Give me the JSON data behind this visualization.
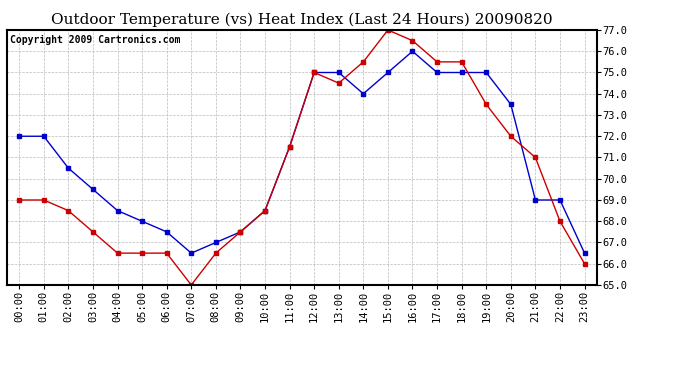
{
  "title": "Outdoor Temperature (vs) Heat Index (Last 24 Hours) 20090820",
  "copyright": "Copyright 2009 Cartronics.com",
  "hours": [
    "00:00",
    "01:00",
    "02:00",
    "03:00",
    "04:00",
    "05:00",
    "06:00",
    "07:00",
    "08:00",
    "09:00",
    "10:00",
    "11:00",
    "12:00",
    "13:00",
    "14:00",
    "15:00",
    "16:00",
    "17:00",
    "18:00",
    "19:00",
    "20:00",
    "21:00",
    "22:00",
    "23:00"
  ],
  "blue_data": [
    72.0,
    72.0,
    70.5,
    69.5,
    68.5,
    68.0,
    67.5,
    66.5,
    67.0,
    67.5,
    68.5,
    71.5,
    75.0,
    75.0,
    74.0,
    75.0,
    76.0,
    75.0,
    75.0,
    75.0,
    73.5,
    69.0,
    69.0,
    66.5
  ],
  "red_data": [
    69.0,
    69.0,
    68.5,
    67.5,
    66.5,
    66.5,
    66.5,
    65.0,
    66.5,
    67.5,
    68.5,
    71.5,
    75.0,
    74.5,
    75.5,
    77.0,
    76.5,
    75.5,
    75.5,
    73.5,
    72.0,
    71.0,
    68.0,
    66.0
  ],
  "ylim": [
    65.0,
    77.0
  ],
  "yticks": [
    65.0,
    66.0,
    67.0,
    68.0,
    69.0,
    70.0,
    71.0,
    72.0,
    73.0,
    74.0,
    75.0,
    76.0,
    77.0
  ],
  "blue_color": "#0000cc",
  "red_color": "#cc0000",
  "bg_color": "#ffffff",
  "plot_bg": "#ffffff",
  "grid_color": "#bbbbbb",
  "title_fontsize": 11,
  "copyright_fontsize": 7,
  "tick_fontsize": 7.5
}
